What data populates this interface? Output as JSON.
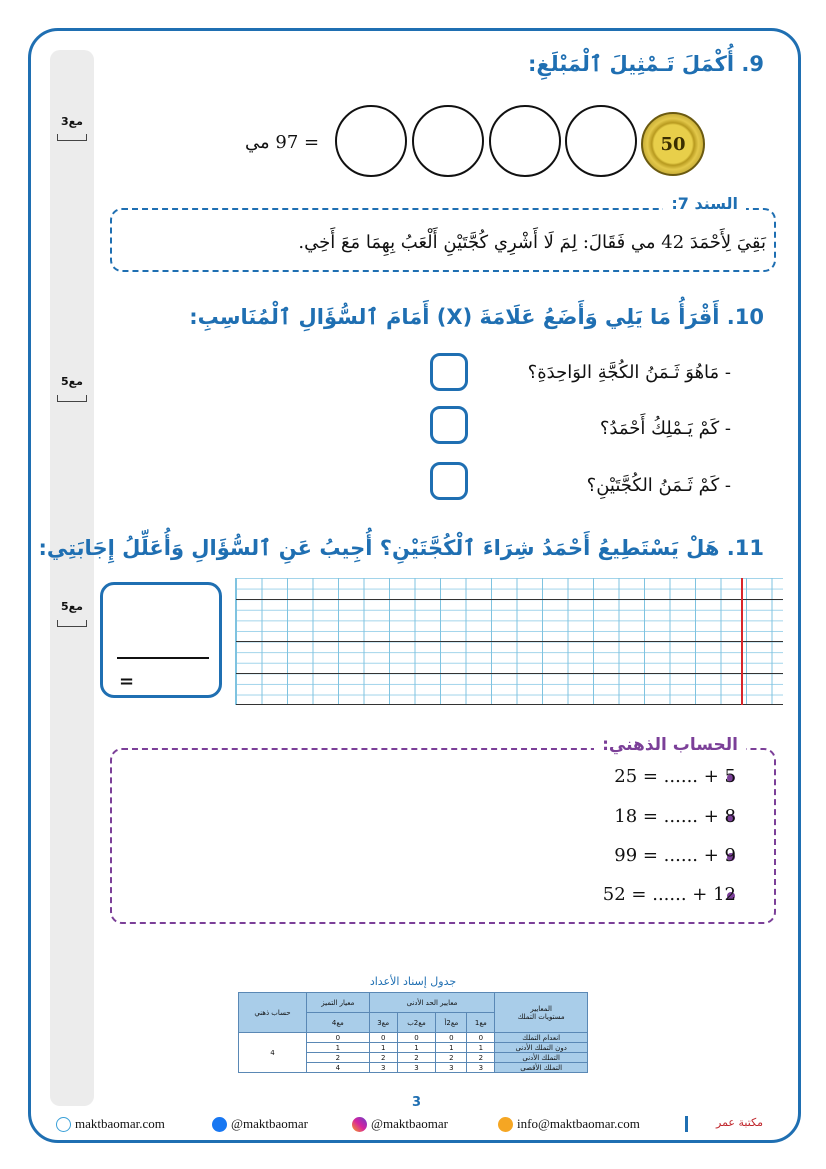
{
  "sidebar": {
    "marks": [
      "مع3",
      "مع5",
      "مع5"
    ]
  },
  "q9": {
    "title": "9.   أُكْمَلَ تَـمْثِيلَ ٱلْمَبْلَغِ:",
    "coin_value": "50",
    "amount": "= 97 مي"
  },
  "sanad": {
    "label": "السند 7:",
    "text": "بَقِيَ لِأَحْمَدَ 42 مي فَقَالَ: لِمَ لَا أَشْرِي كُجَّتَيْنِ أَلْعَبُ بِهِمَا مَعَ أَخِي."
  },
  "q10": {
    "title": "10. أَقْرَأُ مَا يَلِي وَأَضَعُ عَلَامَةَ (X) أَمَامَ ٱلسُّؤَالِ ٱلْمُنَاسِبِ:",
    "items": [
      "-   مَاهُوَ ثَـمَنُ الكُجَّةِ الوَاحِدَةِ؟",
      "-   كَمْ يَـمْلِكُ أَحْمَدُ؟",
      "-   كَمْ ثَـمَنُ الكُجَّتَيْنِ؟"
    ]
  },
  "q11": {
    "title": "11. هَلْ يَسْتَطِيعُ أَحْمَدُ شِرَاءَ ٱلْكُجَّتَيْنِ؟ أُجِيبُ عَنِ ٱلسُّؤَالِ وَأُعَلِّلُ إِجَابَتِي:",
    "equals": "="
  },
  "mental": {
    "label": "الحساب الذهني:",
    "equations": [
      "25 = ...... + 5",
      "18 = ...... + 8",
      "99 = ...... + 9",
      "52 = ...... + 12"
    ]
  },
  "table": {
    "title": "جدول إسناد الأعداد",
    "corner_top": "المعايير",
    "corner_bottom": "مستويات التملك",
    "group_min": "معايير الحد الأدنى",
    "group_exc": "معيار التميز",
    "mental": "حساب ذهني",
    "cols": [
      "مع1",
      "مع2أ",
      "مع2ب",
      "مع3",
      "مع4"
    ],
    "rows": [
      {
        "label": "انعدام التملك",
        "values": [
          "0",
          "0",
          "0",
          "0",
          "0"
        ]
      },
      {
        "label": "دون التملك الأدنى",
        "values": [
          "1",
          "1",
          "1",
          "1",
          "1"
        ]
      },
      {
        "label": "التملك الأدنى",
        "values": [
          "2",
          "2",
          "2",
          "2",
          "2"
        ]
      },
      {
        "label": "التملك الأقصى",
        "values": [
          "3",
          "3",
          "3",
          "3",
          "4"
        ]
      }
    ],
    "mental_value": "4"
  },
  "page_number": "3",
  "footer": {
    "website": "maktbaomar.com",
    "facebook": "@maktbaomar",
    "instagram": "@maktbaomar",
    "email": "info@maktbaomar.com",
    "logo": "مكتبة عمر"
  },
  "colors": {
    "primary": "#1f6fb2",
    "purple": "#7b3f98",
    "coin": "#e3c84a"
  }
}
